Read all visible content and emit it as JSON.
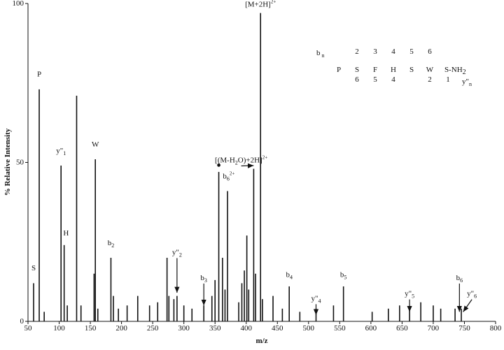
{
  "chart_data": {
    "type": "spectrum",
    "y_label": "% Relative Intensity",
    "x_label": "m/z",
    "color": "#111111",
    "xlim": [
      50,
      800
    ],
    "xticks": [
      50,
      100,
      150,
      200,
      250,
      300,
      350,
      400,
      450,
      500,
      550,
      600,
      650,
      700,
      750,
      800
    ],
    "ylim": [
      0,
      100
    ],
    "yticks": [
      0,
      50,
      100
    ],
    "x": [
      59,
      68,
      76,
      103,
      108,
      113,
      128,
      135,
      156,
      158,
      162,
      183,
      187,
      195,
      209,
      226,
      245,
      258,
      273,
      276,
      284,
      289,
      300,
      313,
      332,
      345,
      350,
      356,
      362,
      366,
      370,
      388,
      393,
      397,
      401,
      404,
      412,
      415,
      423,
      426,
      443,
      458,
      469,
      486,
      512,
      540,
      556,
      602,
      628,
      646,
      662,
      680,
      700,
      712,
      735,
      745
    ],
    "values": [
      12,
      73,
      3,
      49,
      24,
      5,
      71,
      5,
      15,
      51,
      4,
      20,
      8,
      4,
      5,
      8,
      5,
      6,
      20,
      8,
      7,
      8,
      5,
      4,
      5,
      8,
      13,
      47,
      20,
      10,
      41,
      6,
      12,
      16,
      27,
      10,
      48,
      15,
      97,
      7,
      8,
      4,
      11,
      3,
      4,
      5,
      11,
      3,
      4,
      5,
      4,
      6,
      5,
      4,
      4,
      4
    ],
    "annotations": [
      {
        "text": "S",
        "x": 59,
        "y": 16
      },
      {
        "text": "P",
        "x": 68,
        "y": 77
      },
      {
        "text": "y\"",
        "sub": "1",
        "x": 103,
        "y": 53
      },
      {
        "text": "H",
        "x": 111,
        "y": 27
      },
      {
        "text": "W",
        "x": 158,
        "y": 55
      },
      {
        "text": "b",
        "sub": "2",
        "x": 183,
        "y": 24
      },
      {
        "text": "y\"",
        "sub": "2",
        "x": 289,
        "y": 21,
        "target": [
          289,
          9
        ]
      },
      {
        "text": "b",
        "sub": "3",
        "x": 332,
        "y": 13,
        "target": [
          332,
          5
        ]
      },
      {
        "text": "●",
        "x": 356,
        "y": 48.5
      },
      {
        "text": "b",
        "sub": "6",
        "sup": "2+",
        "x": 372,
        "y": 45
      },
      {
        "text": "[(M-H",
        "sub": "2",
        "text2": "O)+2H]",
        "sup": "2+",
        "x": 392,
        "y": 50,
        "target": [
          412,
          49
        ]
      },
      {
        "text": "[M+2H]",
        "sup": "2+",
        "x": 423,
        "y": 99
      },
      {
        "text": "b",
        "sub": "4",
        "x": 469,
        "y": 14
      },
      {
        "text": "y\"",
        "sub": "4",
        "x": 512,
        "y": 6.5,
        "target": [
          512,
          2
        ]
      },
      {
        "text": "b",
        "sub": "5",
        "x": 556,
        "y": 14
      },
      {
        "text": "y\"",
        "sub": "5",
        "x": 662,
        "y": 8,
        "target": [
          662,
          3
        ]
      },
      {
        "text": "b",
        "sub": "6",
        "x": 742,
        "y": 13,
        "target": [
          742,
          3
        ]
      },
      {
        "text": "y\"",
        "sub": "6",
        "x": 762,
        "y": 8,
        "target": [
          748,
          3
        ]
      }
    ],
    "sequence": {
      "b_label": "b",
      "b_sub": "n",
      "b_numbers": [
        "2",
        "3",
        "4",
        "5",
        "6"
      ],
      "residues": [
        "P",
        "S",
        "F",
        "H",
        "S",
        "W",
        "S-NH"
      ],
      "residue_sub": "2",
      "y_numbers": [
        "6",
        "5",
        "4",
        "",
        "2",
        "1"
      ],
      "y_label": "y\"",
      "y_sub": "n"
    }
  }
}
